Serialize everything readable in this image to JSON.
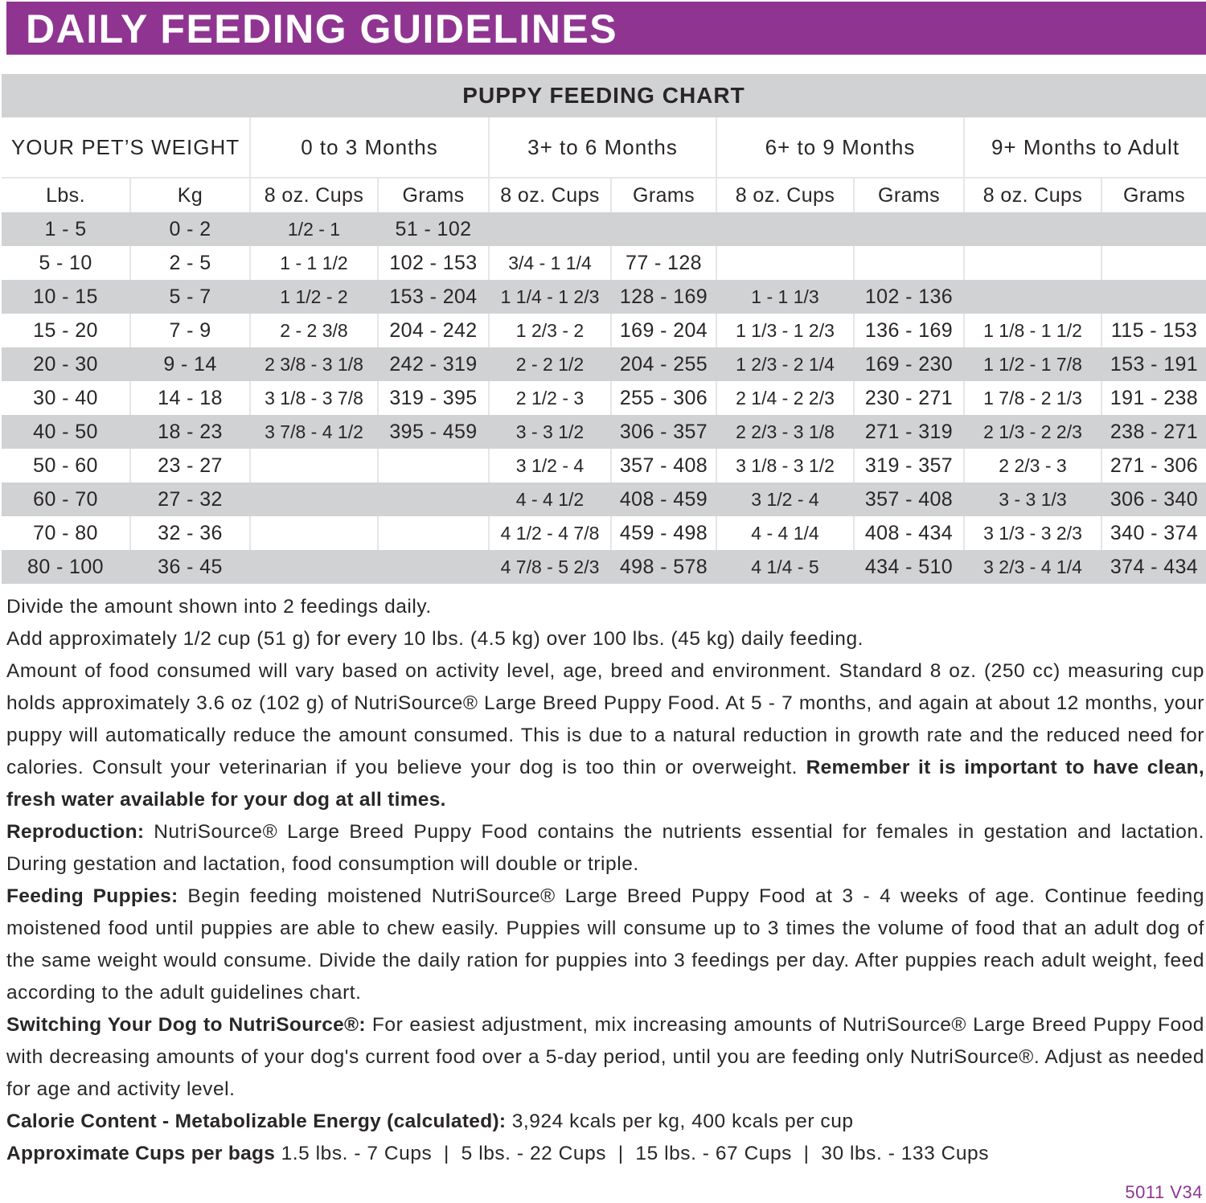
{
  "title": "DAILY FEEDING GUIDELINES",
  "colors": {
    "brand_purple": "#8f3591",
    "row_shade": "#d1d2d4"
  },
  "chart": {
    "title": "PUPPY FEEDING CHART",
    "groups": [
      "YOUR PET’S WEIGHT",
      "0 to 3 Months",
      "3+ to 6 Months",
      "6+ to 9 Months",
      "9+ Months to Adult"
    ],
    "subheaders": [
      "Lbs.",
      "Kg",
      "8 oz. Cups",
      "Grams",
      "8 oz. Cups",
      "Grams",
      "8 oz. Cups",
      "Grams",
      "8 oz. Cups",
      "Grams"
    ],
    "rows": [
      [
        "1 - 5",
        "0 - 2",
        "1/2 - 1",
        "51 - 102",
        "",
        "",
        "",
        "",
        "",
        ""
      ],
      [
        "5 - 10",
        "2 - 5",
        "1 - 1 1/2",
        "102 - 153",
        "3/4 - 1 1/4",
        "77 - 128",
        "",
        "",
        "",
        ""
      ],
      [
        "10 - 15",
        "5 - 7",
        "1 1/2 - 2",
        "153 - 204",
        "1 1/4 - 1 2/3",
        "128 - 169",
        "1 - 1 1/3",
        "102 - 136",
        "",
        ""
      ],
      [
        "15 - 20",
        "7 - 9",
        "2 - 2 3/8",
        "204 - 242",
        "1 2/3 - 2",
        "169 - 204",
        "1 1/3 - 1 2/3",
        "136 - 169",
        "1 1/8 - 1 1/2",
        "115 - 153"
      ],
      [
        "20 - 30",
        "9 - 14",
        "2 3/8 - 3 1/8",
        "242 - 319",
        "2 - 2 1/2",
        "204 - 255",
        "1 2/3 - 2 1/4",
        "169 - 230",
        "1 1/2 - 1 7/8",
        "153 - 191"
      ],
      [
        "30 - 40",
        "14 - 18",
        "3 1/8 - 3 7/8",
        "319 - 395",
        "2 1/2 - 3",
        "255 - 306",
        "2 1/4 - 2 2/3",
        "230 - 271",
        "1 7/8 - 2 1/3",
        "191 - 238"
      ],
      [
        "40 - 50",
        "18 - 23",
        "3 7/8 - 4 1/2",
        "395 - 459",
        "3 - 3 1/2",
        "306 - 357",
        "2 2/3 - 3 1/8",
        "271 - 319",
        "2 1/3 - 2 2/3",
        "238 - 271"
      ],
      [
        "50 - 60",
        "23 - 27",
        "",
        "",
        "3 1/2 - 4",
        "357 - 408",
        "3 1/8 - 3 1/2",
        "319 - 357",
        "2 2/3 - 3",
        "271 - 306"
      ],
      [
        "60 - 70",
        "27 - 32",
        "",
        "",
        "4 - 4 1/2",
        "408 - 459",
        "3 1/2 - 4",
        "357 - 408",
        "3 - 3 1/3",
        "306 - 340"
      ],
      [
        "70 - 80",
        "32 - 36",
        "",
        "",
        "4 1/2 - 4 7/8",
        "459 - 498",
        "4 - 4 1/4",
        "408 - 434",
        "3 1/3 - 3 2/3",
        "340 - 374"
      ],
      [
        "80 - 100",
        "36 - 45",
        "",
        "",
        "4 7/8 - 5 2/3",
        "498 - 578",
        "4 1/4 - 5",
        "434 - 510",
        "3 2/3 - 4 1/4",
        "374 - 434"
      ]
    ]
  },
  "notes": [
    {
      "lead": "",
      "text": "Divide the amount shown into 2 feedings daily.",
      "tail": ""
    },
    {
      "lead": "",
      "text": "Add approximately 1/2 cup (51 g) for every 10 lbs. (4.5 kg) over 100 lbs. (45 kg) daily feeding.",
      "tail": ""
    },
    {
      "lead": "",
      "text": "Amount of food consumed will vary based on activity level, age, breed and environment. Standard 8 oz. (250 cc) measuring cup holds approximately 3.6 oz (102 g) of NutriSource® Large Breed Puppy Food. At 5 - 7 months, and again at about 12 months, your puppy will automatically reduce the amount consumed. This is due to a natural reduction in growth rate and the reduced need for calories. Consult your veterinarian if you believe your dog is too thin or overweight. ",
      "tail": "Remember it is important to have clean, fresh water available for your dog at all times."
    },
    {
      "lead": "Reproduction:",
      "text": " NutriSource® Large Breed Puppy Food contains the nutrients essential for females in gestation and lactation. During gestation and lactation, food consumption will double or triple.",
      "tail": ""
    },
    {
      "lead": "Feeding Puppies:",
      "text": " Begin feeding moistened NutriSource® Large Breed Puppy Food at 3 - 4 weeks of age. Continue feeding moistened food until puppies are able to chew easily. Puppies will consume up to 3 times the volume of food that an adult dog of the same weight would consume. Divide the daily ration for puppies into 3 feedings per day. After puppies reach adult weight, feed according to the adult guidelines chart.",
      "tail": ""
    },
    {
      "lead": "Switching Your Dog to NutriSource®:",
      "text": " For easiest adjustment, mix increasing amounts of NutriSource® Large Breed Puppy Food with decreasing amounts of your dog's current food over a 5-day period, until you are feeding only NutriSource®. Adjust as needed for age and activity level.",
      "tail": ""
    },
    {
      "lead": "Calorie Content - Metabolizable Energy (calculated):",
      "text": " 3,924 kcals per kg, 400 kcals per cup",
      "tail": ""
    },
    {
      "lead": "Approximate Cups per bags",
      "text": " 1.5 lbs. - 7 Cups  |  5 lbs. - 22 Cups  |  15 lbs. - 67 Cups  |  30 lbs. - 133 Cups",
      "tail": ""
    }
  ],
  "code": "5011 V34"
}
